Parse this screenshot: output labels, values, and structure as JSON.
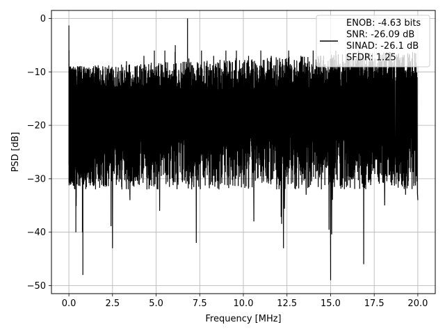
{
  "chart_data": {
    "type": "line",
    "xlabel": "Frequency [MHz]",
    "ylabel": "PSD [dB]",
    "xlim": [
      -1.0,
      21.0
    ],
    "ylim": [
      -51.5,
      1.5
    ],
    "x_ticks": [
      0.0,
      2.5,
      5.0,
      7.5,
      10.0,
      12.5,
      15.0,
      17.5,
      20.0
    ],
    "x_tick_labels": [
      "0.0",
      "2.5",
      "5.0",
      "7.5",
      "10.0",
      "12.5",
      "15.0",
      "17.5",
      "20.0"
    ],
    "y_ticks": [
      0,
      -10,
      -20,
      -30,
      -40,
      -50
    ],
    "y_tick_labels": [
      "0",
      "−10",
      "−20",
      "−30",
      "−40",
      "−50"
    ],
    "grid": true,
    "legend_placement": "upper right",
    "legend": {
      "entries": [
        "ENOB: -4.63 bits",
        "SNR: -26.09 dB",
        "SINAD: -26.1 dB",
        "SFDR: 1.25"
      ]
    },
    "series": [
      {
        "color": "#000000",
        "x": [
          0.0,
          0.05,
          0.1,
          0.2,
          0.3,
          0.4,
          0.5,
          0.6,
          0.7,
          0.8,
          0.9,
          1.0,
          1.2,
          1.4,
          1.6,
          1.8,
          2.0,
          2.2,
          2.5,
          2.8,
          3.0,
          3.3,
          3.5,
          3.8,
          4.0,
          4.3,
          4.6,
          4.9,
          5.2,
          5.5,
          5.8,
          6.1,
          6.4,
          6.8,
          7.0,
          7.3,
          7.6,
          8.0,
          8.3,
          8.6,
          9.0,
          9.3,
          9.6,
          10.0,
          10.3,
          10.6,
          11.0,
          11.3,
          11.6,
          12.0,
          12.3,
          12.6,
          13.0,
          13.3,
          13.6,
          14.0,
          14.3,
          14.6,
          15.0,
          15.3,
          15.6,
          16.0,
          16.3,
          16.6,
          16.9,
          17.2,
          17.5,
          17.8,
          18.1,
          18.4,
          18.7,
          19.0,
          19.3,
          19.6,
          20.0
        ],
        "y": [
          -1.3,
          -28,
          -9,
          -26,
          -14,
          -40,
          -12,
          -30,
          -16,
          -48,
          -13,
          -27,
          -11,
          -31,
          -10,
          -24,
          -12,
          -28,
          -43,
          -10,
          -24,
          -8,
          -34,
          -9,
          -26,
          -7,
          -30,
          -6,
          -36,
          -6,
          -30,
          -5,
          -22,
          0,
          -20,
          -42,
          -6,
          -24,
          -7,
          -32,
          -6,
          -25,
          -6,
          -31,
          -7,
          -38,
          -6,
          -24,
          -7,
          -30,
          -43,
          -6,
          -25,
          -7,
          -33,
          -6,
          -28,
          -7,
          -49,
          -6,
          -26,
          -7,
          -30,
          -6,
          -46,
          -8,
          -28,
          -8,
          -35,
          -9,
          -26,
          -9,
          -33,
          -10,
          -34
        ]
      }
    ]
  }
}
